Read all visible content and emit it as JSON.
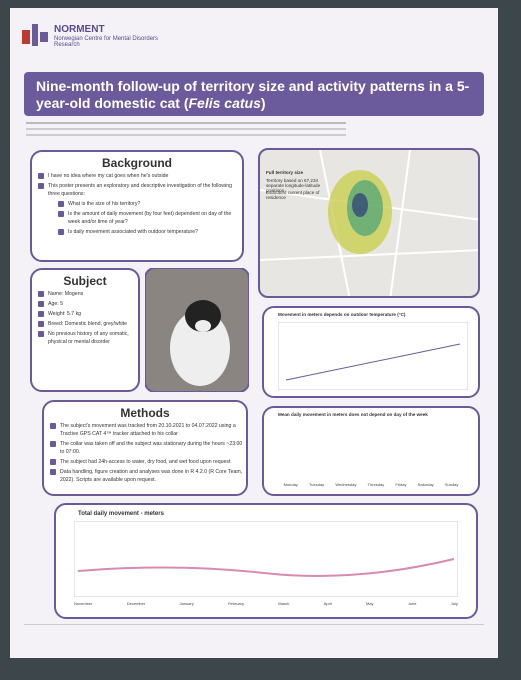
{
  "header": {
    "org": "NORMENT",
    "org_sub": "Norwegian Centre for Mental Disorders Research"
  },
  "title": [
    "Nine-month follow-up of territory size and activity patterns in a 5-year-old domestic cat (",
    "Felis catus",
    ")"
  ],
  "background": {
    "heading": "Background",
    "items": [
      "I have no idea where my cat goes when he's outside",
      "This poster presents an exploratory and descriptive investigation of the following three questions:"
    ],
    "questions": [
      "What is the size of his territory?",
      "Is the amount of daily movement (by four feet) dependent on day of the week and/or time of year?",
      "Is daily movement associated with outdoor temperature?"
    ]
  },
  "subject": {
    "heading": "Subject",
    "items": [
      "Name: Mogens",
      "Age: 5",
      "Weight: 5.7 kg",
      "Breed: Domestic blend, grey/white",
      "No previous history of any somatic, physical or mental disorder"
    ]
  },
  "methods": {
    "heading": "Methods",
    "items": [
      "The subject's movement was tracked from 20.10.2021 to 04.07.2022 using a Tractive GPS CAT 4™ tracker attached to his collar",
      "The collar was taken off and the subject was stationary during the hours ~23:00 to 07:00.",
      "The subject had 24h-access to water, dry food, and wet food upon request",
      "Data handling, figure creation and analyses was done in R 4.2.0 (R Core Team, 2022). Scripts are available upon request."
    ]
  },
  "map": {
    "title": "Full territory size",
    "legend": [
      "Territory based on 67,234 separate longitude-latitude positions",
      "Estimated current place of residence"
    ]
  },
  "scatter": {
    "title": "Movement in meters depends on outdoor temperature (°C)"
  },
  "boxplot": {
    "title": "Mean daily movement in meters does not depend on day of the week",
    "days": [
      "Monday",
      "Tuesday",
      "Wednesday",
      "Thursday",
      "Friday",
      "Saturday",
      "Sunday"
    ]
  },
  "timeseries": {
    "title": "Total daily movement - meters",
    "months": [
      "November",
      "December",
      "January",
      "February",
      "March",
      "April",
      "May",
      "June",
      "July"
    ]
  }
}
